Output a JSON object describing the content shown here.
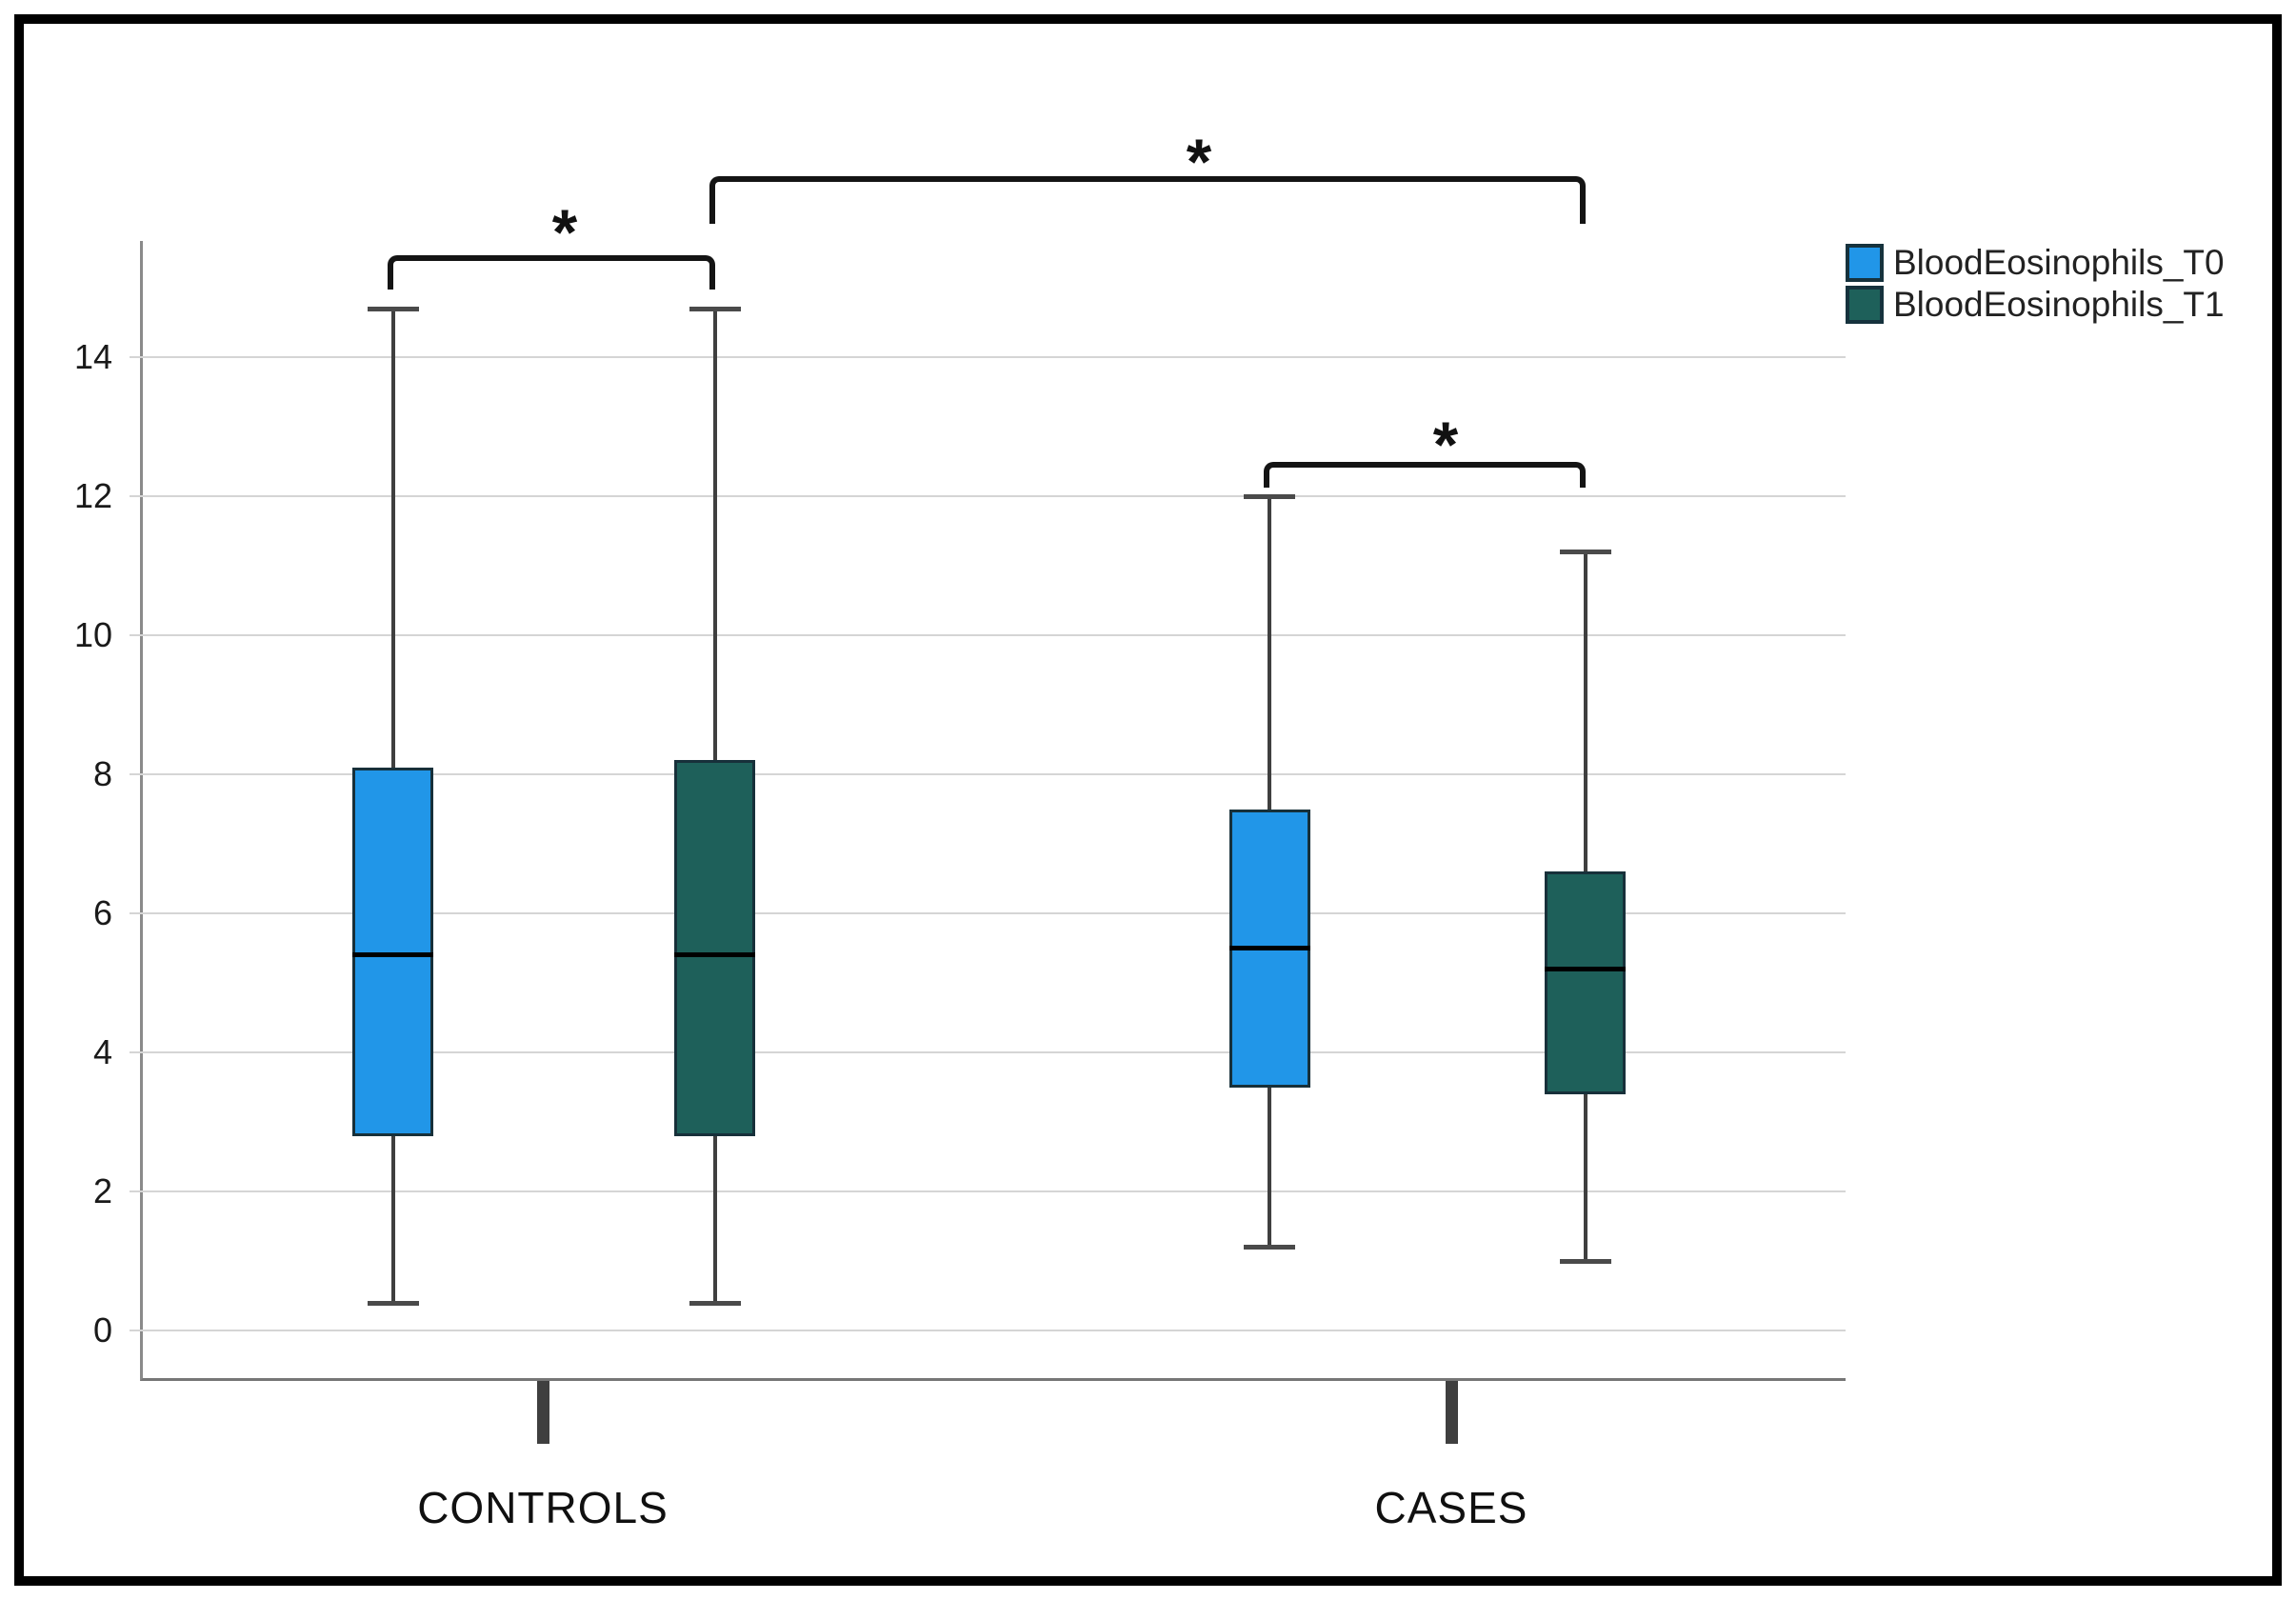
{
  "chart_data": {
    "type": "boxplot",
    "title": "",
    "y_axis": {
      "ticks": [
        0,
        2,
        4,
        6,
        8,
        10,
        12,
        14
      ],
      "range_shown": [
        -0.7,
        15.7
      ],
      "gridlines": true
    },
    "x_axis": {
      "categories": [
        "CONTROLS",
        "CASES"
      ]
    },
    "legend": {
      "position": "top-right",
      "items": [
        {
          "label": "BloodEosinophils_T0",
          "color": "#2196E8"
        },
        {
          "label": "BloodEosinophils_T1",
          "color": "#1E605A"
        }
      ]
    },
    "series": [
      {
        "name": "BloodEosinophils_T0",
        "color": "#2196E8",
        "boxes": [
          {
            "category": "CONTROLS",
            "whisker_low": 0.4,
            "q1": 2.8,
            "median": 5.4,
            "q3": 8.1,
            "whisker_high": 14.7
          },
          {
            "category": "CASES",
            "whisker_low": 1.2,
            "q1": 3.5,
            "median": 5.5,
            "q3": 7.5,
            "whisker_high": 12.0
          }
        ]
      },
      {
        "name": "BloodEosinophils_T1",
        "color": "#1E605A",
        "boxes": [
          {
            "category": "CONTROLS",
            "whisker_low": 0.4,
            "q1": 2.8,
            "median": 5.4,
            "q3": 8.2,
            "whisker_high": 14.7
          },
          {
            "category": "CASES",
            "whisker_low": 1.0,
            "q1": 3.4,
            "median": 5.2,
            "q3": 6.6,
            "whisker_high": 11.2
          }
        ]
      }
    ],
    "significance_brackets": [
      {
        "label": "*",
        "from": {
          "series": "BloodEosinophils_T0",
          "category": "CONTROLS"
        },
        "to": {
          "series": "BloodEosinophils_T1",
          "category": "CONTROLS"
        }
      },
      {
        "label": "*",
        "from": {
          "series": "BloodEosinophils_T1",
          "category": "CONTROLS"
        },
        "to": {
          "series": "BloodEosinophils_T1",
          "category": "CASES"
        }
      },
      {
        "label": "*",
        "from": {
          "series": "BloodEosinophils_T0",
          "category": "CASES"
        },
        "to": {
          "series": "BloodEosinophils_T1",
          "category": "CASES"
        }
      }
    ]
  }
}
